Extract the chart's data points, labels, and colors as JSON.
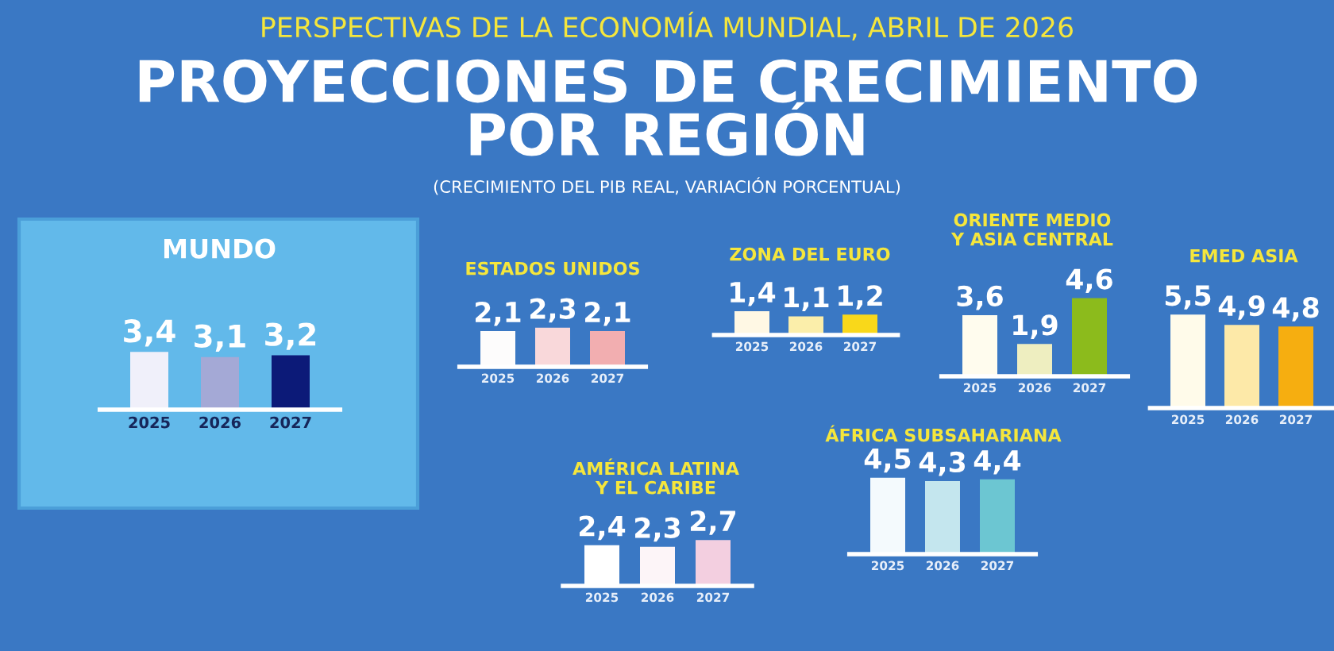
{
  "chart_data": [
    {
      "type": "other",
      "title": "PROYECCIONES DE CRECIMIENTO POR REGIÓN",
      "subtitle": "(CRECIMIENTO DEL PIB REAL, VARIACIÓN PORCENTUAL)",
      "annotations": [
        "PERSPECTIVAS DE LA ECONOMÍA MUNDIAL, ABRIL DE 2026"
      ]
    },
    {
      "type": "bar",
      "title": "MUNDO",
      "categories": [
        "2025",
        "2026",
        "2027"
      ],
      "values": [
        3.4,
        3.1,
        3.2
      ],
      "colors": [
        "#f0f0fa",
        "#a4a9d6",
        "#0c1a78"
      ],
      "value_labels": [
        "3,4",
        "3,1",
        "3,2"
      ],
      "tick_labels": "x"
    },
    {
      "type": "bar",
      "title": "ESTADOS UNIDOS",
      "categories": [
        "2025",
        "2026",
        "2027"
      ],
      "values": [
        2.1,
        2.3,
        2.1
      ],
      "colors": [
        "#fdfcfc",
        "#f9d8da",
        "#f2aeb0"
      ],
      "value_labels": [
        "2,1",
        "2,3",
        "2,1"
      ],
      "tick_labels": "x"
    },
    {
      "type": "bar",
      "title": "ZONA DEL EURO",
      "categories": [
        "2025",
        "2026",
        "2027"
      ],
      "values": [
        1.4,
        1.1,
        1.2
      ],
      "colors": [
        "#fff8e4",
        "#fbeeaa",
        "#f9d81a"
      ],
      "value_labels": [
        "1,4",
        "1,1",
        "1,2"
      ],
      "tick_labels": "x"
    },
    {
      "type": "bar",
      "title": "ORIENTE MEDIO Y ASIA CENTRAL",
      "categories": [
        "2025",
        "2026",
        "2027"
      ],
      "values": [
        3.6,
        1.9,
        4.6
      ],
      "colors": [
        "#fffcee",
        "#eeeec0",
        "#8cbb1c"
      ],
      "value_labels": [
        "3,6",
        "1,9",
        "4,6"
      ],
      "tick_labels": "x"
    },
    {
      "type": "bar",
      "title": "EMED ASIA",
      "categories": [
        "2025",
        "2026",
        "2027"
      ],
      "values": [
        5.5,
        4.9,
        4.8
      ],
      "colors": [
        "#fffbea",
        "#fde9a8",
        "#f6ae10"
      ],
      "value_labels": [
        "5,5",
        "4,9",
        "4,8"
      ],
      "tick_labels": "x"
    },
    {
      "type": "bar",
      "title": "AMÉRICA LATINA Y EL CARIBE",
      "categories": [
        "2025",
        "2026",
        "2027"
      ],
      "values": [
        2.4,
        2.3,
        2.7
      ],
      "colors": [
        "#ffffff",
        "#fdf5f8",
        "#f3cfe0"
      ],
      "value_labels": [
        "2,4",
        "2,3",
        "2,7"
      ],
      "tick_labels": "x"
    },
    {
      "type": "bar",
      "title": "ÁFRICA SUBSAHARIANA",
      "categories": [
        "2025",
        "2026",
        "2027"
      ],
      "values": [
        4.5,
        4.3,
        4.4
      ],
      "colors": [
        "#f4fafd",
        "#c4e6ee",
        "#6cc6d2"
      ],
      "value_labels": [
        "4,5",
        "4,3",
        "4,4"
      ],
      "tick_labels": "x"
    }
  ]
}
